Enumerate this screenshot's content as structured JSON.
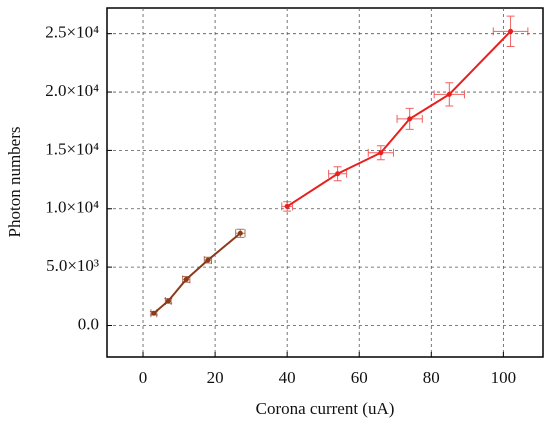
{
  "chart_data": {
    "type": "line",
    "x_label": "Corona current (uA)",
    "y_label": "Photon numbers",
    "xlim": [
      -10,
      111
    ],
    "xticks": [
      0,
      20,
      40,
      60,
      80,
      100
    ],
    "ylim": [
      -2700,
      27200
    ],
    "yticks": [
      {
        "value": 0,
        "label": "0.0"
      },
      {
        "value": 5000,
        "label": "5.0×10³"
      },
      {
        "value": 10000,
        "label": "1.0×10⁴"
      },
      {
        "value": 15000,
        "label": "1.5×10⁴"
      },
      {
        "value": 20000,
        "label": "2.0×10⁴"
      },
      {
        "value": 25000,
        "label": "2.5×10⁴"
      }
    ],
    "grid": true,
    "series": [
      {
        "color": "#8b3a1a",
        "x": [
          3,
          7,
          12,
          18,
          27
        ],
        "y": [
          1050,
          2100,
          3950,
          5600,
          7900
        ],
        "xerr": [
          0.8,
          0.8,
          1,
          1,
          1.3
        ],
        "yerr": [
          150,
          200,
          250,
          250,
          350
        ]
      },
      {
        "color": "#e8201e",
        "x": [
          40,
          54,
          66,
          74,
          85,
          102
        ],
        "y": [
          10200,
          13000,
          14800,
          17700,
          19800,
          25200
        ],
        "xerr": [
          1.5,
          2.5,
          3.5,
          3.5,
          4.2,
          4.8
        ],
        "yerr": [
          400,
          600,
          600,
          900,
          1000,
          1300
        ]
      }
    ]
  }
}
